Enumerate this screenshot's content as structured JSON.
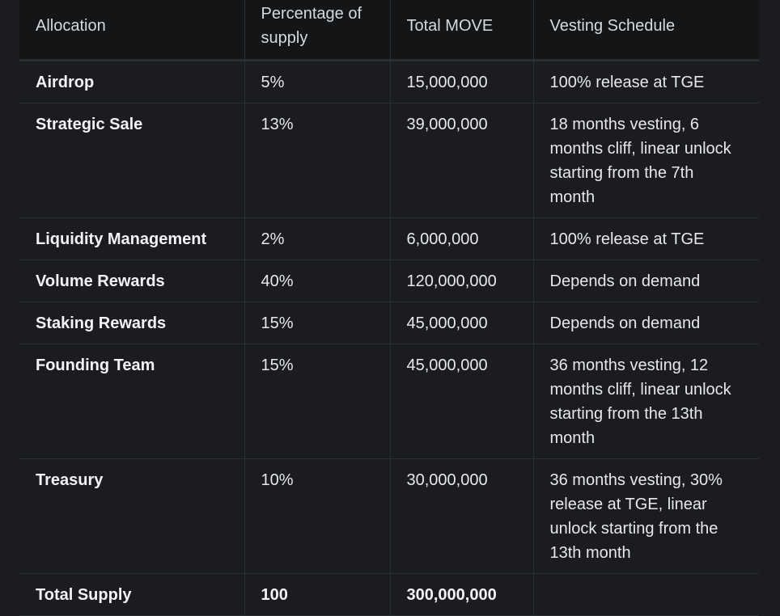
{
  "table": {
    "headers": [
      "Allocation",
      "Percentage of supply",
      "Total MOVE",
      "Vesting Schedule"
    ],
    "rows": [
      {
        "allocation": "Airdrop",
        "percentage": "5%",
        "total": "15,000,000",
        "vesting": "100% release at TGE"
      },
      {
        "allocation": "Strategic Sale",
        "percentage": "13%",
        "total": "39,000,000",
        "vesting": "18 months vesting, 6 months cliff, linear unlock starting from the 7th month"
      },
      {
        "allocation": "Liquidity Management",
        "percentage": "2%",
        "total": "6,000,000",
        "vesting": "100% release at TGE"
      },
      {
        "allocation": "Volume Rewards",
        "percentage": "40%",
        "total": "120,000,000",
        "vesting": "Depends on demand"
      },
      {
        "allocation": "Staking Rewards",
        "percentage": "15%",
        "total": "45,000,000",
        "vesting": "Depends on demand"
      },
      {
        "allocation": "Founding Team",
        "percentage": "15%",
        "total": "45,000,000",
        "vesting": "36 months vesting, 12 months cliff, linear unlock starting from the 13th month"
      },
      {
        "allocation": "Treasury",
        "percentage": "10%",
        "total": "30,000,000",
        "vesting": "36 months vesting, 30% release at TGE, linear unlock starting from the 13th month"
      }
    ],
    "total_row": {
      "allocation": "Total Supply",
      "percentage": "100",
      "total": "300,000,000",
      "vesting": ""
    }
  }
}
